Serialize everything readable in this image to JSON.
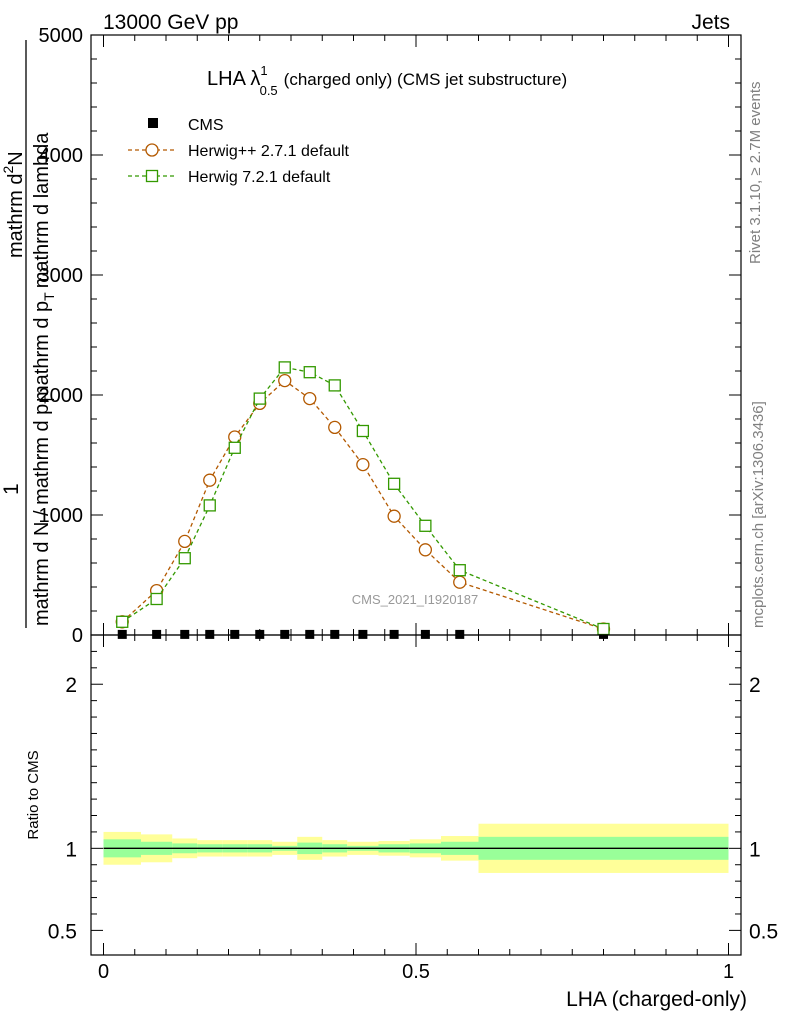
{
  "header": {
    "left": "13000 GeV pp",
    "right": "Jets"
  },
  "side_labels": {
    "rivet": "Rivet 3.1.10, ≥ 2.7M events",
    "mcplots": "mcplots.cern.ch [arXiv:1306.3436]"
  },
  "chart_data": [
    {
      "type": "line",
      "title_main": "LHA λ",
      "title_sup": "1",
      "title_sub": "0.5",
      "title_rest": "(charged only) (CMS jet substructure)",
      "watermark": "CMS_2021_I1920187",
      "ylabel_num": "1",
      "ylabel_den": "mathrm d N / mathrm d p",
      "ylabel_den_sub": "T",
      "ylabel_deriv": "mathrm d p",
      "ylabel_deriv_sub": "T",
      "ylabel_deriv_rest": "mathrm d lambda",
      "ylabel_num2": "mathrm d",
      "ylabel_num2_sup": "2",
      "ylabel_num2_rest": "N",
      "xlim": [
        -0.02,
        1.02
      ],
      "ylim": [
        0,
        5000
      ],
      "yticks": [
        0,
        1000,
        2000,
        3000,
        4000,
        5000
      ],
      "ytick_labels": [
        "0",
        "1000",
        "2000",
        "3000",
        "4000",
        "5000"
      ],
      "legend": [
        "CMS",
        "Herwig++ 2.7.1 default",
        "Herwig 7.2.1 default"
      ],
      "series": [
        {
          "name": "CMS",
          "color": "#000000",
          "x": [
            0.03,
            0.085,
            0.13,
            0.17,
            0.21,
            0.25,
            0.29,
            0.33,
            0.37,
            0.415,
            0.465,
            0.515,
            0.57,
            0.8
          ],
          "y": [
            5,
            5,
            5,
            5,
            5,
            5,
            5,
            5,
            5,
            5,
            5,
            5,
            5,
            5
          ]
        },
        {
          "name": "Herwig++ 2.7.1 default",
          "color": "#b35900",
          "x": [
            0.03,
            0.085,
            0.13,
            0.17,
            0.21,
            0.25,
            0.29,
            0.33,
            0.37,
            0.415,
            0.465,
            0.515,
            0.57,
            0.8
          ],
          "y": [
            110,
            370,
            780,
            1290,
            1650,
            1930,
            2120,
            1970,
            1730,
            1420,
            990,
            710,
            440,
            50
          ]
        },
        {
          "name": "Herwig 7.2.1 default",
          "color": "#339900",
          "x": [
            0.03,
            0.085,
            0.13,
            0.17,
            0.21,
            0.25,
            0.29,
            0.33,
            0.37,
            0.415,
            0.465,
            0.515,
            0.57,
            0.8
          ],
          "y": [
            110,
            300,
            640,
            1080,
            1560,
            1970,
            2230,
            2190,
            2080,
            1700,
            1260,
            910,
            540,
            50
          ]
        }
      ]
    },
    {
      "type": "area",
      "ylabel": "Ratio to CMS",
      "xlabel": "LHA (charged-only)",
      "xlim": [
        -0.02,
        1.02
      ],
      "xticks": [
        0,
        0.5,
        1
      ],
      "xtick_labels": [
        "0",
        "0.5",
        "1"
      ],
      "ylim": [
        0.35,
        2.3
      ],
      "ytick_labels": [
        {
          "value": 0.5,
          "label": "0.5"
        },
        {
          "value": 1,
          "label": "1"
        },
        {
          "value": 2,
          "label": "2"
        }
      ],
      "bins": [
        {
          "x0": 0.0,
          "x1": 0.06,
          "inner": [
            0.945,
            1.055
          ],
          "outer": [
            0.9,
            1.1
          ]
        },
        {
          "x0": 0.06,
          "x1": 0.11,
          "inner": [
            0.96,
            1.04
          ],
          "outer": [
            0.915,
            1.085
          ]
        },
        {
          "x0": 0.11,
          "x1": 0.15,
          "inner": [
            0.97,
            1.03
          ],
          "outer": [
            0.94,
            1.06
          ]
        },
        {
          "x0": 0.15,
          "x1": 0.19,
          "inner": [
            0.975,
            1.025
          ],
          "outer": [
            0.95,
            1.05
          ]
        },
        {
          "x0": 0.19,
          "x1": 0.23,
          "inner": [
            0.975,
            1.025
          ],
          "outer": [
            0.95,
            1.05
          ]
        },
        {
          "x0": 0.23,
          "x1": 0.27,
          "inner": [
            0.975,
            1.025
          ],
          "outer": [
            0.95,
            1.05
          ]
        },
        {
          "x0": 0.27,
          "x1": 0.31,
          "inner": [
            0.985,
            1.015
          ],
          "outer": [
            0.96,
            1.04
          ]
        },
        {
          "x0": 0.31,
          "x1": 0.35,
          "inner": [
            0.965,
            1.035
          ],
          "outer": [
            0.93,
            1.07
          ]
        },
        {
          "x0": 0.35,
          "x1": 0.39,
          "inner": [
            0.975,
            1.025
          ],
          "outer": [
            0.95,
            1.05
          ]
        },
        {
          "x0": 0.39,
          "x1": 0.44,
          "inner": [
            0.985,
            1.015
          ],
          "outer": [
            0.96,
            1.04
          ]
        },
        {
          "x0": 0.44,
          "x1": 0.49,
          "inner": [
            0.975,
            1.025
          ],
          "outer": [
            0.955,
            1.045
          ]
        },
        {
          "x0": 0.49,
          "x1": 0.54,
          "inner": [
            0.97,
            1.03
          ],
          "outer": [
            0.945,
            1.055
          ]
        },
        {
          "x0": 0.54,
          "x1": 0.6,
          "inner": [
            0.96,
            1.04
          ],
          "outer": [
            0.925,
            1.075
          ]
        },
        {
          "x0": 0.6,
          "x1": 1.0,
          "inner": [
            0.93,
            1.07
          ],
          "outer": [
            0.85,
            1.15
          ]
        }
      ],
      "inner_color": "#99ff99",
      "outer_color": "#ffff99"
    }
  ]
}
